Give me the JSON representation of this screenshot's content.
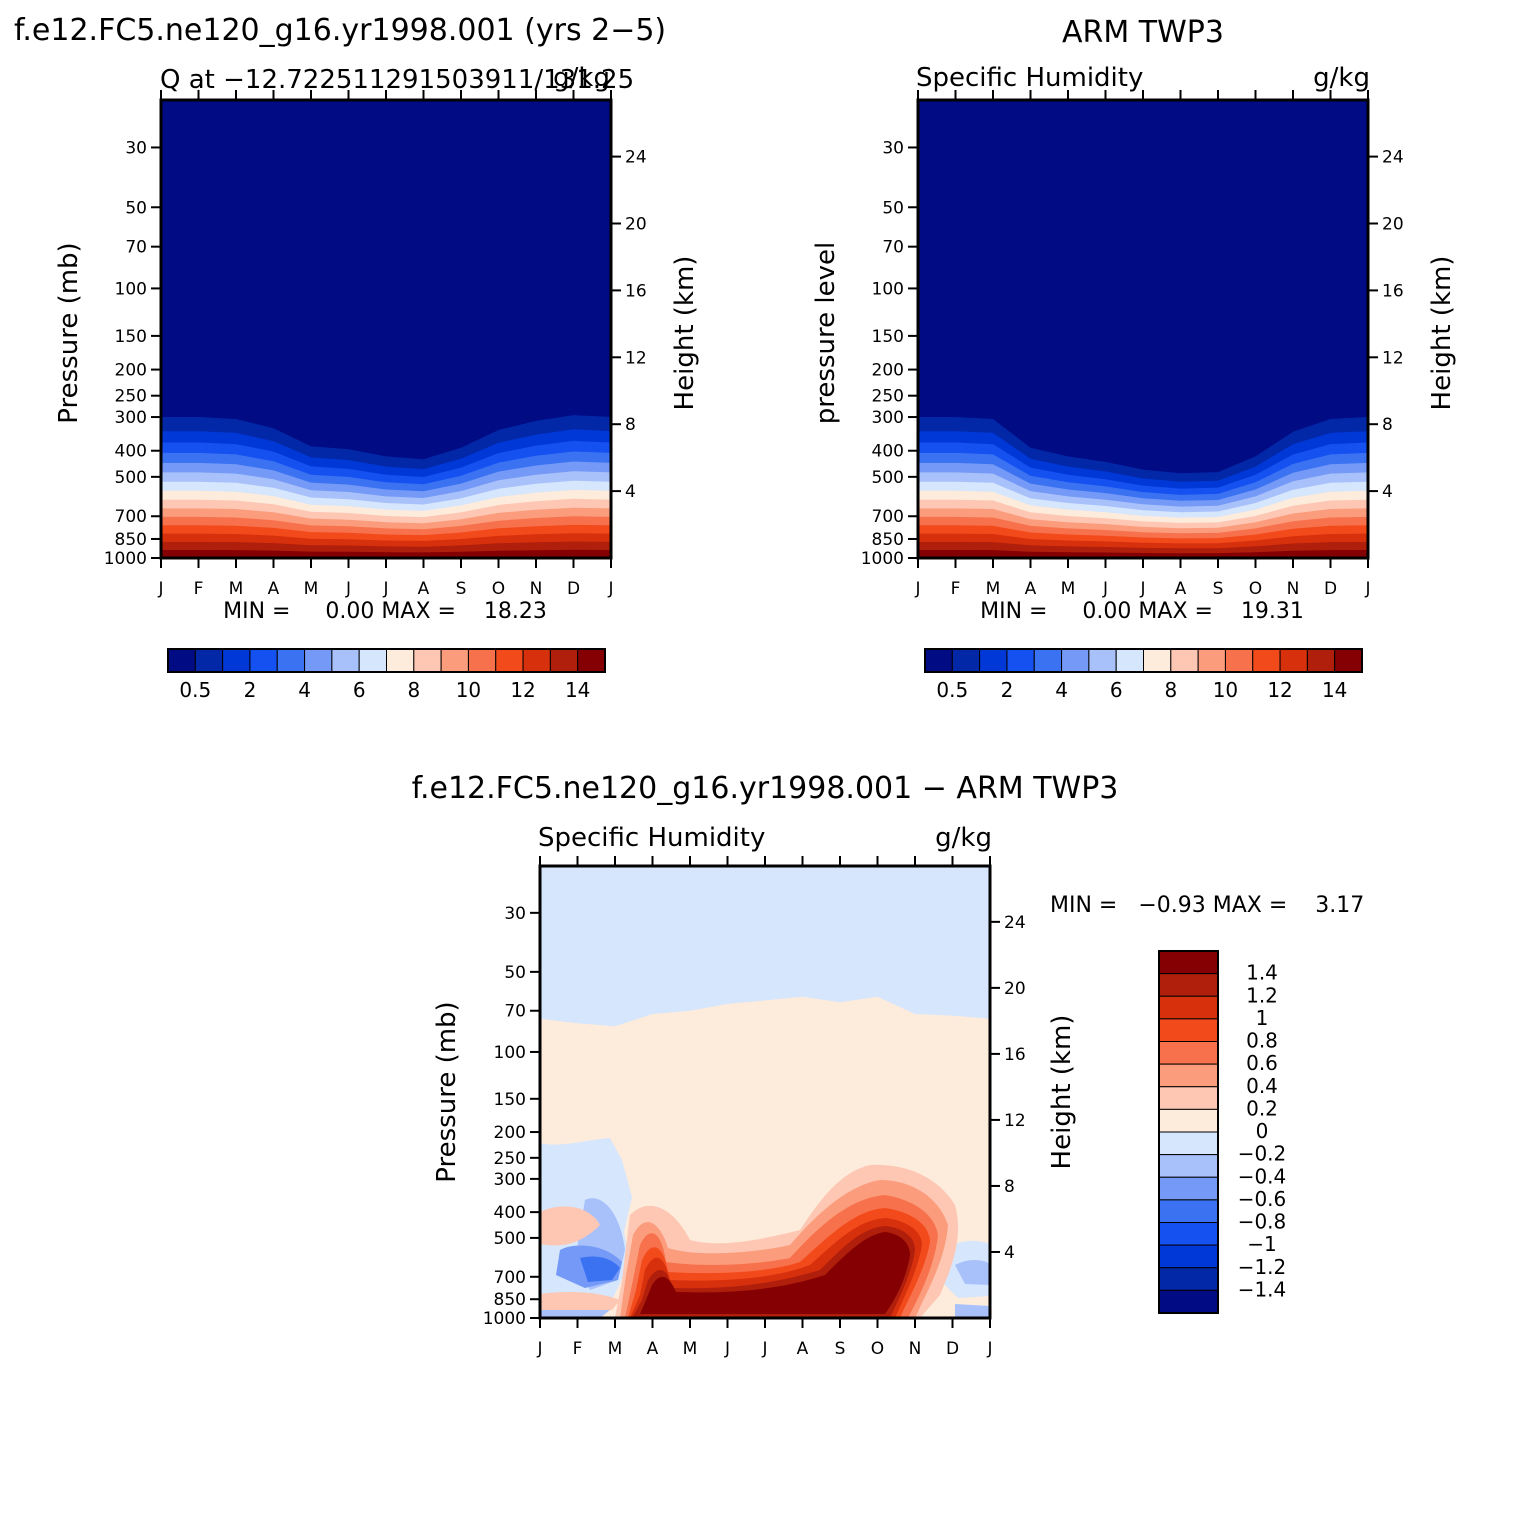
{
  "chart_data": [
    {
      "type": "heatmap",
      "run_title": "f.e12.FC5.ne120_g16.yr1998.001 (yrs 2−5)",
      "left_string": "Q at −12.722511291503911/131.25",
      "right_string": "g/kg",
      "ylabel": "Pressure (mb)",
      "ylabel_right": "Height (km)",
      "xticks": [
        "J",
        "F",
        "M",
        "A",
        "M",
        "J",
        "J",
        "A",
        "S",
        "O",
        "N",
        "D",
        "J"
      ],
      "yticks": [
        "30",
        "50",
        "70",
        "100",
        "150",
        "200",
        "250",
        "300",
        "400",
        "500",
        "700",
        "850",
        "1000"
      ],
      "yticks_right": [
        "24",
        "20",
        "16",
        "12",
        "8",
        "4"
      ],
      "stats_label": "MIN =     0.00 MAX =    18.23",
      "ylim_mb": [
        20,
        1000
      ],
      "min": 0.0,
      "max": 18.23,
      "contour_bands_g_kg": [
        0.5,
        2,
        4,
        6,
        8,
        10,
        12,
        14
      ],
      "colorbar_labels": [
        "0.5",
        "2",
        "4",
        "6",
        "8",
        "10",
        "12",
        "14"
      ],
      "moist_layer_top_mb_by_month": [
        300,
        300,
        305,
        330,
        385,
        395,
        420,
        430,
        390,
        335,
        310,
        295,
        300
      ]
    },
    {
      "type": "heatmap",
      "run_title": "ARM TWP3",
      "left_string": "Specific Humidity",
      "right_string": "g/kg",
      "ylabel": "pressure level",
      "ylabel_right": "Height (km)",
      "xticks": [
        "J",
        "F",
        "M",
        "A",
        "M",
        "J",
        "J",
        "A",
        "S",
        "O",
        "N",
        "D",
        "J"
      ],
      "yticks": [
        "30",
        "50",
        "70",
        "100",
        "150",
        "200",
        "250",
        "300",
        "400",
        "500",
        "700",
        "850",
        "1000"
      ],
      "yticks_right": [
        "24",
        "20",
        "16",
        "12",
        "8",
        "4"
      ],
      "stats_label": "MIN =     0.00 MAX =    19.31",
      "ylim_mb": [
        20,
        1000
      ],
      "min": 0.0,
      "max": 19.31,
      "contour_bands_g_kg": [
        0.5,
        2,
        4,
        6,
        8,
        10,
        12,
        14
      ],
      "colorbar_labels": [
        "0.5",
        "2",
        "4",
        "6",
        "8",
        "10",
        "12",
        "14"
      ],
      "moist_layer_top_mb_by_month": [
        300,
        300,
        305,
        390,
        420,
        440,
        470,
        485,
        480,
        420,
        340,
        305,
        300
      ]
    },
    {
      "type": "heatmap",
      "run_title": "f.e12.FC5.ne120_g16.yr1998.001 − ARM TWP3",
      "left_string": "Specific Humidity",
      "right_string": "g/kg",
      "ylabel": "Pressure (mb)",
      "ylabel_right": "Height (km)",
      "xticks": [
        "J",
        "F",
        "M",
        "A",
        "M",
        "J",
        "J",
        "A",
        "S",
        "O",
        "N",
        "D",
        "J"
      ],
      "yticks": [
        "30",
        "50",
        "70",
        "100",
        "150",
        "200",
        "250",
        "300",
        "400",
        "500",
        "700",
        "850",
        "1000"
      ],
      "yticks_right": [
        "24",
        "20",
        "16",
        "12",
        "8",
        "4"
      ],
      "stats_label": "MIN =   −0.93 MAX =    3.17",
      "ylim_mb": [
        20,
        1000
      ],
      "min": -0.93,
      "max": 3.17,
      "contour_levels_g_kg": [
        1.4,
        1.2,
        1,
        0.8,
        0.6,
        0.4,
        0.2,
        0,
        -0.2,
        -0.4,
        -0.6,
        -0.8,
        -1,
        -1.2,
        -1.4
      ],
      "colorbar_labels": [
        "1.4",
        "1.2",
        "1",
        "0.8",
        "0.6",
        "0.4",
        "0.2",
        "0",
        "−0.2",
        "−0.4",
        "−0.6",
        "−0.8",
        "−1",
        "−1.2",
        "−1.4"
      ],
      "zero_contour_mb_by_month": [
        75,
        78,
        80,
        72,
        70,
        66,
        64,
        62,
        65,
        62,
        72,
        73,
        75
      ]
    }
  ],
  "palettes": {
    "abs": [
      "#000b84",
      "#0228a8",
      "#0038d8",
      "#1550f0",
      "#3a72f2",
      "#7499f6",
      "#a9c1fa",
      "#d5e6fd",
      "#fdebdc",
      "#fdc7b3",
      "#fb9c7d",
      "#f7724c",
      "#f34a1c",
      "#d7300d",
      "#b01e0c",
      "#850002"
    ],
    "diff": [
      "#850002",
      "#b01e0c",
      "#d7300d",
      "#f34a1c",
      "#f7724c",
      "#fb9c7d",
      "#fdc7b3",
      "#fdebdc",
      "#d5e6fd",
      "#a9c1fa",
      "#7499f6",
      "#3a72f2",
      "#1550f0",
      "#0038d8",
      "#0228a8",
      "#000b84"
    ]
  }
}
